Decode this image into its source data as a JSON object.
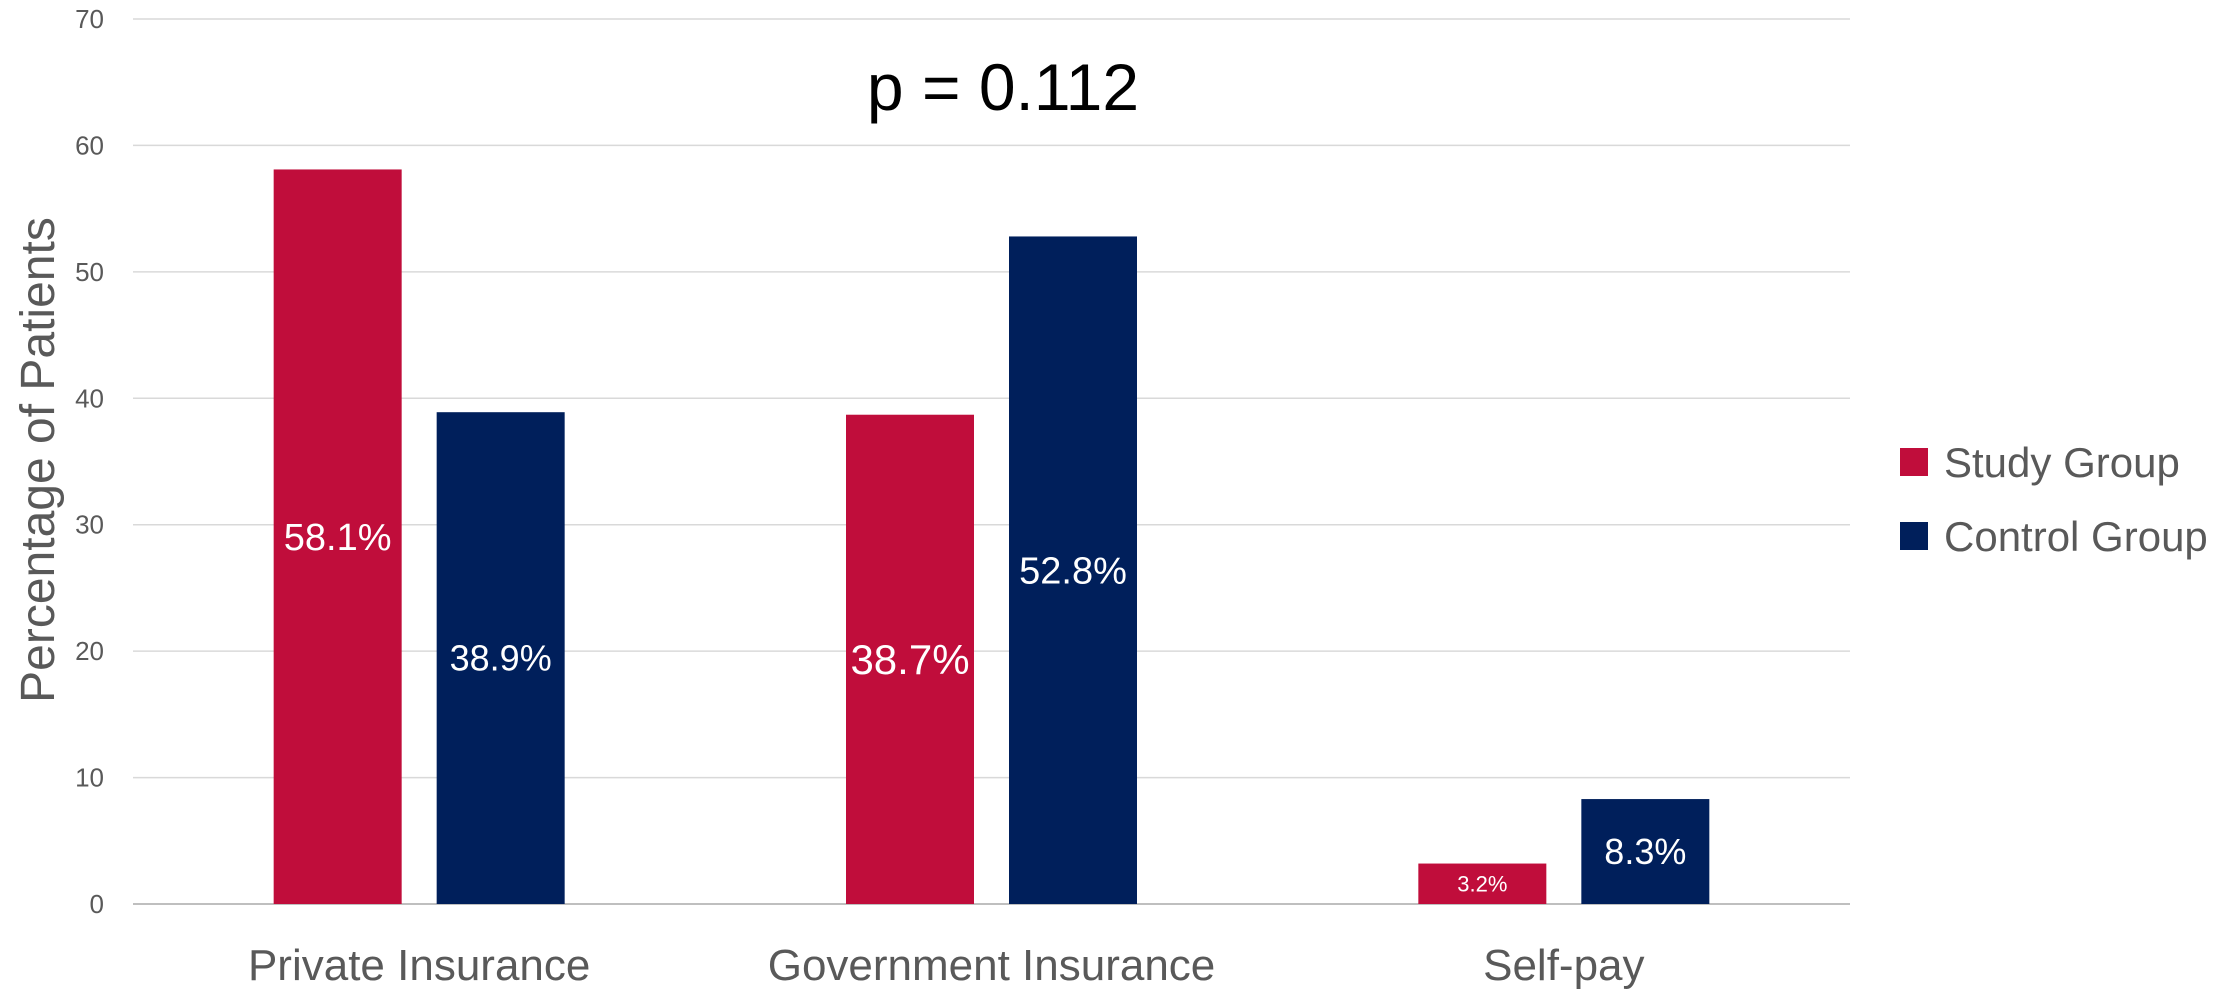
{
  "chart_data": {
    "type": "bar",
    "title": "",
    "annotation": "p = 0.112",
    "xlabel": "",
    "ylabel": "Percentage of Patients",
    "ylim": [
      0,
      70
    ],
    "yticks": [
      0,
      10,
      20,
      30,
      40,
      50,
      60,
      70
    ],
    "categories": [
      "Private Insurance",
      "Government Insurance",
      "Self-pay"
    ],
    "series": [
      {
        "name": "Study Group",
        "color": "#C00D3B",
        "values": [
          58.1,
          38.7,
          3.2
        ],
        "labels": [
          "58.1%",
          "38.7%",
          "3.2%"
        ]
      },
      {
        "name": "Control Group",
        "color": "#001F5B",
        "values": [
          38.9,
          52.8,
          8.3
        ],
        "labels": [
          "38.9%",
          "52.8%",
          "8.3%"
        ]
      }
    ],
    "grid": true,
    "legend_position": "right"
  }
}
